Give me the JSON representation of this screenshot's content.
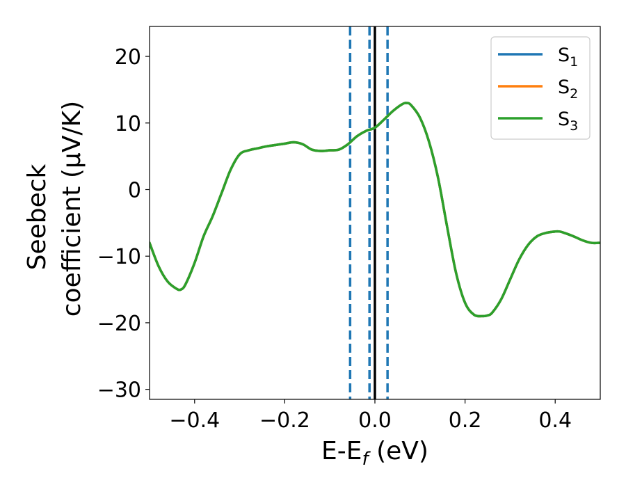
{
  "chart_data": {
    "type": "line",
    "xlabel": {
      "main": "E-E",
      "sub": "f",
      "tail": " (eV)"
    },
    "ylabel": {
      "line1": "Seebeck",
      "line2": "coefficient  (μV/K)"
    },
    "xlim": [
      -0.5,
      0.5
    ],
    "ylim": [
      -31.5,
      24.5
    ],
    "xticks": [
      -0.4,
      -0.2,
      0.0,
      0.2,
      0.4
    ],
    "xtick_labels": [
      "−0.4",
      "−0.2",
      "0.0",
      "0.2",
      "0.4"
    ],
    "yticks": [
      -30,
      -20,
      -10,
      0,
      10,
      20
    ],
    "ytick_labels": [
      "−30",
      "−20",
      "−10",
      "0",
      "10",
      "20"
    ],
    "grid": false,
    "legend_position": "top-right",
    "legend": [
      {
        "label": "S",
        "sub": "1",
        "color": "#1f77b4"
      },
      {
        "label": "S",
        "sub": "2",
        "color": "#ff7f0e"
      },
      {
        "label": "S",
        "sub": "3",
        "color": "#2ca02c"
      }
    ],
    "vlines": [
      {
        "x": -0.055,
        "color": "#1f77b4",
        "style": "dashed"
      },
      {
        "x": -0.012,
        "color": "#1f77b4",
        "style": "dashed"
      },
      {
        "x": 0.0,
        "color": "#000000",
        "style": "solid"
      },
      {
        "x": 0.028,
        "color": "#1f77b4",
        "style": "dashed"
      }
    ],
    "x": [
      -0.5,
      -0.48,
      -0.46,
      -0.44,
      -0.43,
      -0.42,
      -0.4,
      -0.38,
      -0.36,
      -0.34,
      -0.32,
      -0.3,
      -0.28,
      -0.26,
      -0.24,
      -0.22,
      -0.2,
      -0.18,
      -0.16,
      -0.14,
      -0.12,
      -0.1,
      -0.08,
      -0.06,
      -0.04,
      -0.02,
      0.0,
      0.02,
      0.04,
      0.06,
      0.07,
      0.08,
      0.1,
      0.12,
      0.14,
      0.16,
      0.18,
      0.2,
      0.22,
      0.24,
      0.25,
      0.26,
      0.28,
      0.3,
      0.32,
      0.34,
      0.36,
      0.38,
      0.4,
      0.41,
      0.42,
      0.44,
      0.46,
      0.48,
      0.5
    ],
    "series": [
      {
        "name": "S1",
        "color": "#1f77b4",
        "values": [
          -8.0,
          -11.5,
          -13.8,
          -14.9,
          -15.0,
          -14.2,
          -11.0,
          -7.0,
          -4.0,
          -0.5,
          3.0,
          5.3,
          5.9,
          6.2,
          6.5,
          6.7,
          6.9,
          7.1,
          6.8,
          6.0,
          5.8,
          5.9,
          6.0,
          6.8,
          8.0,
          8.8,
          9.3,
          10.5,
          11.8,
          12.8,
          13.0,
          12.7,
          10.8,
          7.2,
          1.8,
          -5.5,
          -12.5,
          -17.0,
          -18.8,
          -19.0,
          -18.9,
          -18.5,
          -16.5,
          -13.5,
          -10.5,
          -8.3,
          -7.0,
          -6.5,
          -6.3,
          -6.3,
          -6.5,
          -7.0,
          -7.6,
          -8.0,
          -8.0
        ]
      },
      {
        "name": "S2",
        "color": "#ff7f0e",
        "values": [
          -8.0,
          -11.5,
          -13.8,
          -14.9,
          -15.0,
          -14.2,
          -11.0,
          -7.0,
          -4.0,
          -0.5,
          3.0,
          5.3,
          5.9,
          6.2,
          6.5,
          6.7,
          6.9,
          7.1,
          6.8,
          6.0,
          5.8,
          5.9,
          6.0,
          6.8,
          8.0,
          8.8,
          9.3,
          10.5,
          11.8,
          12.8,
          13.0,
          12.7,
          10.8,
          7.2,
          1.8,
          -5.5,
          -12.5,
          -17.0,
          -18.8,
          -19.0,
          -18.9,
          -18.5,
          -16.5,
          -13.5,
          -10.5,
          -8.3,
          -7.0,
          -6.5,
          -6.3,
          -6.3,
          -6.5,
          -7.0,
          -7.6,
          -8.0,
          -8.0
        ]
      },
      {
        "name": "S3",
        "color": "#2ca02c",
        "values": [
          -8.0,
          -11.5,
          -13.8,
          -14.9,
          -15.0,
          -14.2,
          -11.0,
          -7.0,
          -4.0,
          -0.5,
          3.0,
          5.3,
          5.9,
          6.2,
          6.5,
          6.7,
          6.9,
          7.1,
          6.8,
          6.0,
          5.8,
          5.9,
          6.0,
          6.8,
          8.0,
          8.8,
          9.3,
          10.5,
          11.8,
          12.8,
          13.0,
          12.7,
          10.8,
          7.2,
          1.8,
          -5.5,
          -12.5,
          -17.0,
          -18.8,
          -19.0,
          -18.9,
          -18.5,
          -16.5,
          -13.5,
          -10.5,
          -8.3,
          -7.0,
          -6.5,
          -6.3,
          -6.3,
          -6.5,
          -7.0,
          -7.6,
          -8.0,
          -8.0
        ]
      }
    ]
  }
}
